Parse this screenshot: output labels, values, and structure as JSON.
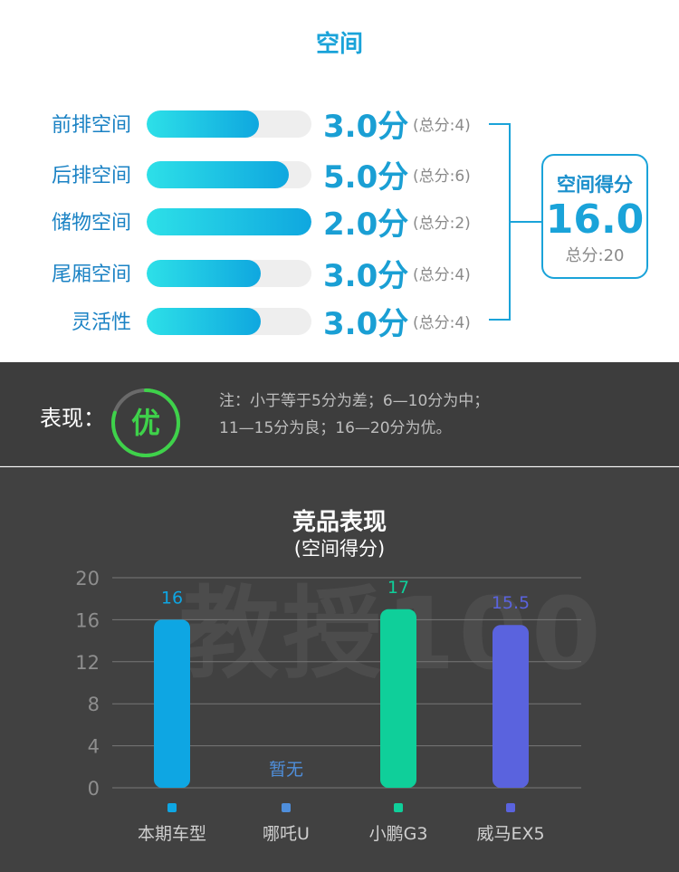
{
  "top": {
    "title": "空间",
    "rows": [
      {
        "label": "前排空间",
        "score": "3.0分",
        "total": "(总分:4)",
        "fill": 0.68
      },
      {
        "label": "后排空间",
        "score": "5.0分",
        "total": "(总分:6)",
        "fill": 0.86
      },
      {
        "label": "储物空间",
        "score": "2.0分",
        "total": "(总分:2)",
        "fill": 1.0
      },
      {
        "label": "尾厢空间",
        "score": "3.0分",
        "total": "(总分:4)",
        "fill": 0.69
      },
      {
        "label": "灵活性",
        "score": "3.0分",
        "total": "(总分:4)",
        "fill": 0.69
      }
    ],
    "summary": {
      "title": "空间得分",
      "value": "16.0",
      "total": "总分:20"
    }
  },
  "performance": {
    "label": "表现：",
    "badge": "优",
    "badge_color": "#3ed24a",
    "ring_progress": 0.8,
    "note_line1": "注：小于等于5分为差；6—10分为中；",
    "note_line2": "11—15分为良；16—20分为优。"
  },
  "watermark": "教授100",
  "chart_data": {
    "type": "bar",
    "title": "竞品表现",
    "subtitle": "(空间得分)",
    "categories": [
      "本期车型",
      "哪吒U",
      "小鹏G3",
      "威马EX5"
    ],
    "values": [
      16,
      null,
      17,
      15.5
    ],
    "value_labels": [
      "16",
      "暂无",
      "17",
      "15.5"
    ],
    "colors": [
      "#0ea6e3",
      "#4f8fdc",
      "#0fcf9a",
      "#5a63de"
    ],
    "yticks": [
      0,
      4,
      8,
      12,
      16,
      20
    ],
    "ylim": [
      0,
      20
    ],
    "grid": true
  }
}
